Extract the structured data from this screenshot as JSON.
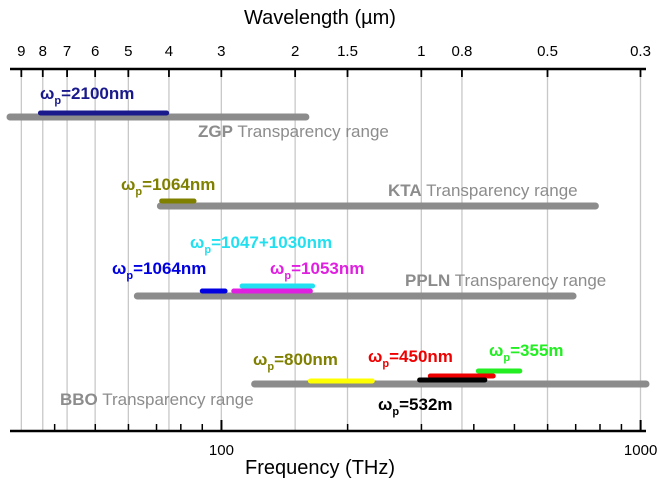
{
  "chart_data": {
    "type": "range-bar",
    "top_axis": {
      "label": "Wavelength (µm)",
      "tick_labels": [
        "9",
        "8",
        "7",
        "6",
        "5",
        "4",
        "3",
        "2",
        "1.5",
        "1",
        "0.8",
        "0.5",
        "0.3"
      ],
      "tick_values": [
        9,
        8,
        7,
        6,
        5,
        4,
        3,
        2,
        1.5,
        1,
        0.8,
        0.5,
        0.3
      ]
    },
    "bottom_axis": {
      "label": "Frequency (THz)",
      "scale": "log",
      "range": [
        31.3,
        1030
      ],
      "tick_labels": [
        "100",
        "1000"
      ],
      "tick_values": [
        100,
        1000
      ]
    },
    "grid": true,
    "grid_color": "#c8c8c8",
    "crystals": [
      {
        "name": "ZGP",
        "suffix": "Transparency range",
        "range_thz": [
          31.3,
          159
        ],
        "color": "#8c8c8c"
      },
      {
        "name": "KTA",
        "suffix": "Transparency range",
        "range_thz": [
          71.5,
          780
        ],
        "color": "#8c8c8c"
      },
      {
        "name": "PPLN",
        "suffix": "Transparency range",
        "range_thz": [
          63,
          690
        ],
        "color": "#8c8c8c"
      },
      {
        "name": "BBO",
        "suffix": "Transparency range",
        "range_thz": [
          120,
          1030
        ],
        "color": "#8c8c8c"
      }
    ],
    "pump_bands": [
      {
        "sym": "ω",
        "sub": "p",
        "text": "=2100nm",
        "range_thz": [
          37,
          74
        ],
        "color": "#1a1a8c"
      },
      {
        "sym": "ω",
        "sub": "p",
        "text": "=1064nm",
        "range_thz": [
          72,
          86
        ],
        "color": "#7f7f00"
      },
      {
        "sym": "ω",
        "sub": "p",
        "text": "=1047+1030nm",
        "range_thz": [
          112,
          165
        ],
        "color": "#22e0f0"
      },
      {
        "sym": "ω",
        "sub": "p",
        "text": "=1064nm",
        "range_thz": [
          90,
          102
        ],
        "color": "#0000e0"
      },
      {
        "sym": "ω",
        "sub": "p",
        "text": "=1053nm",
        "range_thz": [
          107,
          163
        ],
        "color": "#e020e0"
      },
      {
        "sym": "ω",
        "sub": "p",
        "text": "=800nm",
        "range_thz": [
          163,
          229
        ],
        "color": "#ffff00",
        "label_color": "#7f7f00"
      },
      {
        "sym": "ω",
        "sub": "p",
        "text": "=450nm",
        "range_thz": [
          315,
          445
        ],
        "color": "#ee0000"
      },
      {
        "sym": "ω",
        "sub": "p",
        "text": "=355m",
        "range_thz": [
          410,
          515
        ],
        "color": "#22ee22"
      },
      {
        "sym": "ω",
        "sub": "p",
        "text": "=532m",
        "range_thz": [
          297,
          425
        ],
        "color": "#000000"
      }
    ]
  }
}
